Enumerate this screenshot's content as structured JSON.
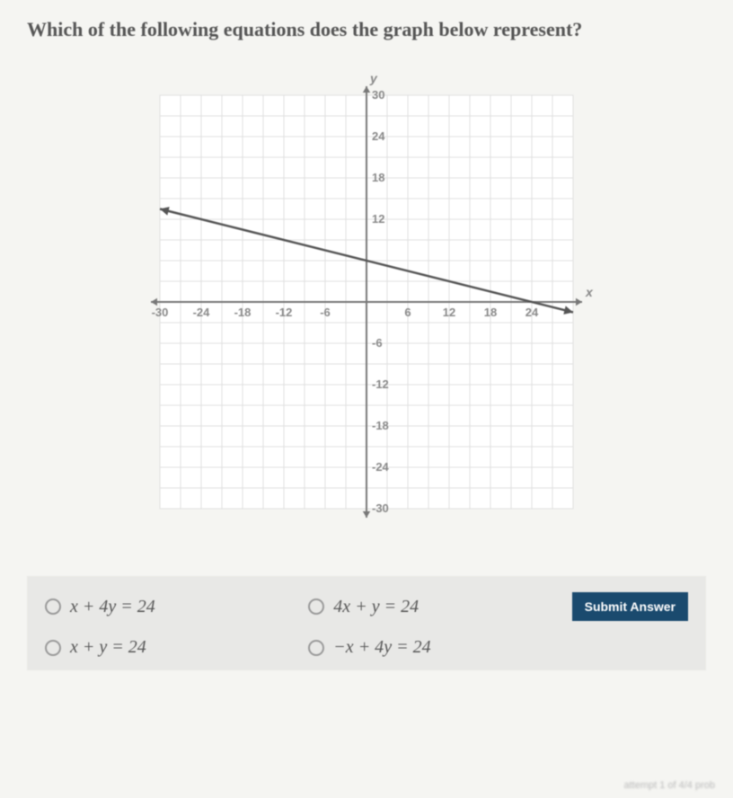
{
  "question": "Which of the following equations does the graph below represent?",
  "chart": {
    "type": "line",
    "xlim": [
      -30,
      30
    ],
    "ylim": [
      -30,
      30
    ],
    "tick_step": 6,
    "positive_y_ticks": [
      30,
      24,
      18,
      12
    ],
    "negative_y_ticks": [
      -6,
      -12,
      -18,
      -24,
      -30
    ],
    "positive_x_ticks": [
      6,
      12,
      18,
      24
    ],
    "negative_x_ticks": [
      -30,
      -24,
      -18,
      -12,
      -6
    ],
    "y_axis_label": "y",
    "x_axis_label": "x",
    "grid_color": "#e0e0e0",
    "axis_color": "#777",
    "line_color": "#555",
    "background_color": "#ffffff",
    "line_points": {
      "x1": -30,
      "y1": 13.5,
      "x2": 30,
      "y2": -1.5
    },
    "arrow_size": 7
  },
  "options": {
    "a": "x + 4y = 24",
    "b": "4x + y = 24",
    "c": "x + y = 24",
    "d": "−x + 4y = 24"
  },
  "submit_label": "Submit Answer",
  "footer_text": "attempt 1 of 4/4 prob"
}
